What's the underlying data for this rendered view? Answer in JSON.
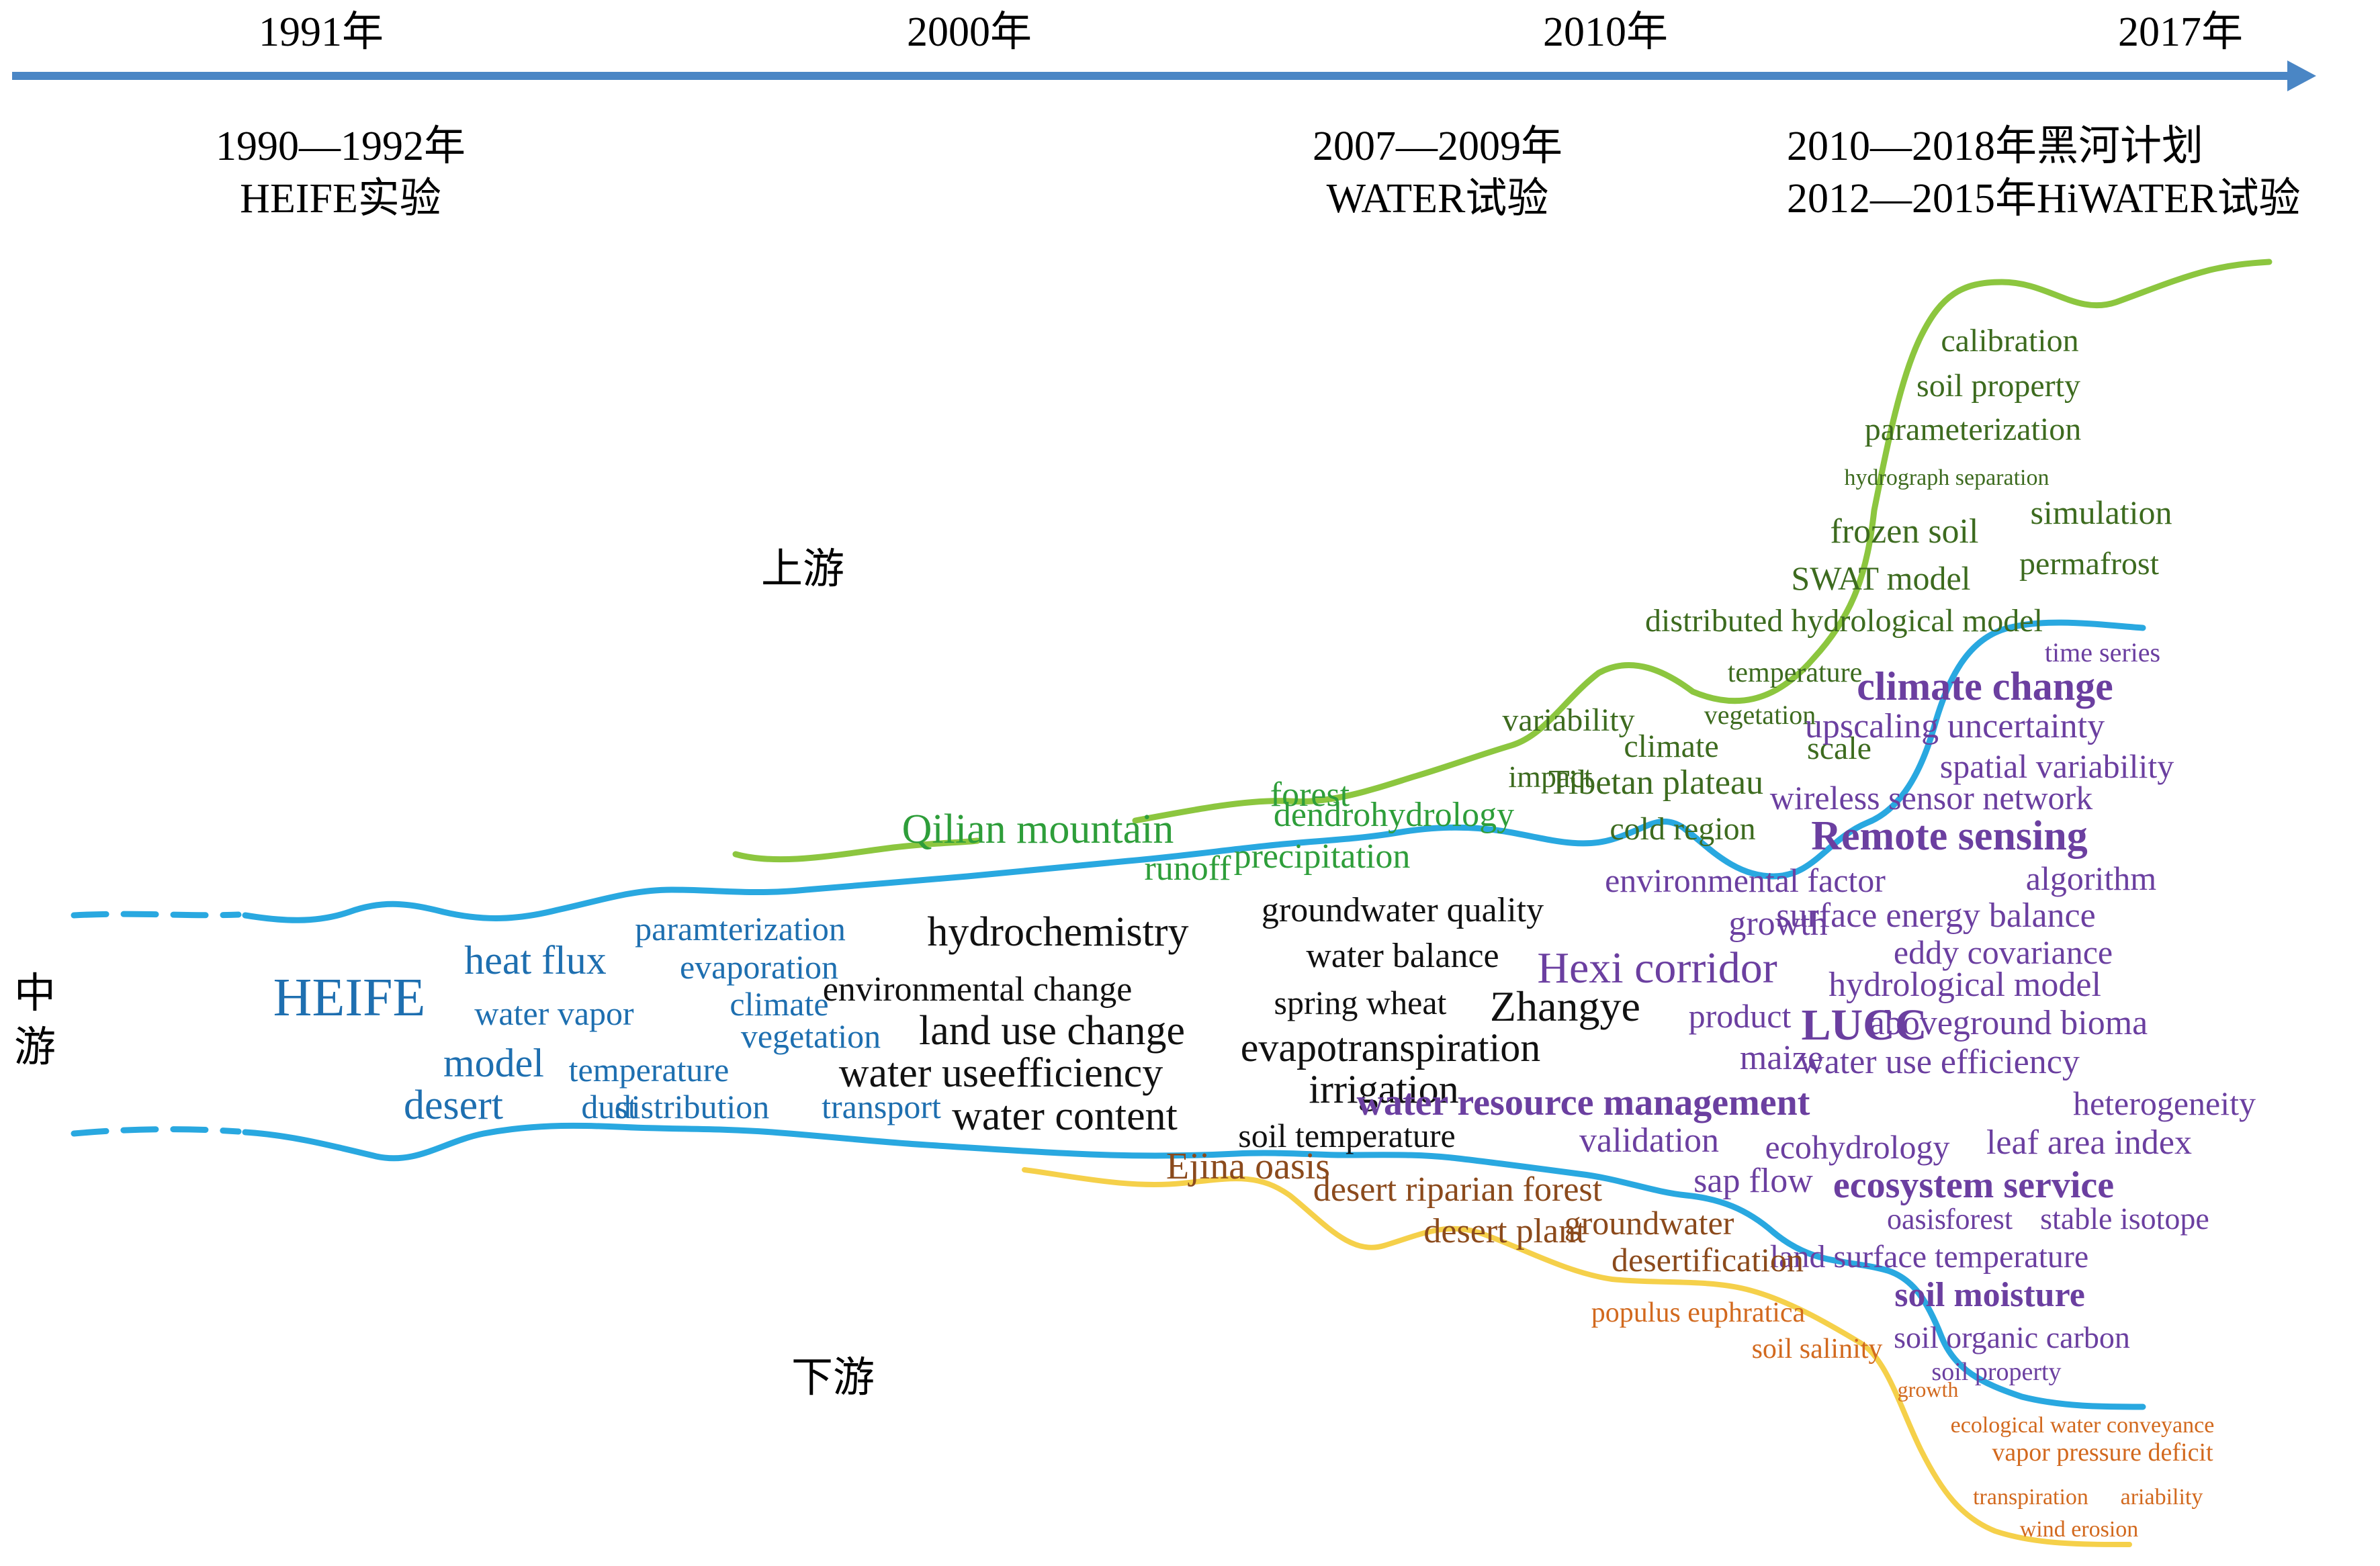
{
  "timeline": {
    "years": [
      "1991年",
      "2000年",
      "2010年",
      "2017年"
    ],
    "events": {
      "heife": [
        "1990—1992年",
        "HEIFE实验"
      ],
      "water": [
        "2007—2009年",
        "WATER试验"
      ],
      "heihe": [
        "2010—2018年黑河计划",
        "2012—2015年HiWATER试验"
      ]
    }
  },
  "zones": {
    "upstream": "上游",
    "midstream": [
      "中",
      "游"
    ],
    "downstream": "下游"
  },
  "colors": {
    "timeline_arrow": "#4a86c5",
    "midstream_stream": "#29a8e0",
    "upstream_stream": "#8cc63f",
    "downstream_stream": "#f5d04a",
    "heife_terms": "#1e6fb0",
    "mid_terms": "#111111",
    "upstream_dark": "#3d6b1f",
    "upstream_green": "#2e9e3a",
    "purple_terms": "#6b3fa0",
    "brown_terms": "#8b4a1c",
    "orange_terms": "#d2691e"
  },
  "terms": {
    "heife_group": [
      "HEIFE",
      "heat flux",
      "water vapor",
      "model",
      "desert",
      "temperature",
      "dust",
      "distribution",
      "transport",
      "paramterization",
      "evaporation",
      "climate",
      "vegetation"
    ],
    "mid_black": [
      "hydrochemistry",
      "environmental change",
      "land use change",
      "water useefficiency",
      "water content",
      "groundwater quality",
      "water balance",
      "spring wheat",
      "Zhangye",
      "evapotranspiration",
      "irrigation",
      "soil temperature"
    ],
    "upstream_green": [
      "Qilian mountain",
      "forest",
      "dendrohydrology",
      "runoff",
      "precipitation",
      "variability",
      "climate",
      "vegetation",
      "impact",
      "Tibetan plateau",
      "scale",
      "cold region",
      "temperature"
    ],
    "upstream_dark": [
      "calibration",
      "soil property",
      "parameterization",
      "hydrograph separation",
      "frozen soil",
      "simulation",
      "SWAT model",
      "permafrost",
      "distributed hydrological model"
    ],
    "purple": [
      "time series",
      "climate change",
      "upscaling uncertainty",
      "spatial variability",
      "wireless sensor network",
      "Remote sensing",
      "environmental factor",
      "algorithm",
      "growth",
      "surface energy balance",
      "eddy covariance",
      "Hexi corridor",
      "hydrological model",
      "product",
      "LUCC",
      "aboveground bioma",
      "maize",
      "water use efficiency",
      "water resource management",
      "heterogeneity",
      "validation",
      "leaf area index",
      "ecohydrology",
      "sap flow",
      "ecosystem service",
      "oasis",
      "forest",
      "stable isotope",
      "land surface temperature",
      "soil moisture",
      "soil organic carbon",
      "soil property"
    ],
    "brown": [
      "Ejina oasis",
      "desert riparian forest",
      "desert plant",
      "groundwater",
      "desertification"
    ],
    "orange": [
      "populus euphratica",
      "soil salinity",
      "growth",
      "ecological water conveyance",
      "vapor pressure deficit",
      "transpiration",
      "ariability",
      "wind erosion"
    ]
  }
}
